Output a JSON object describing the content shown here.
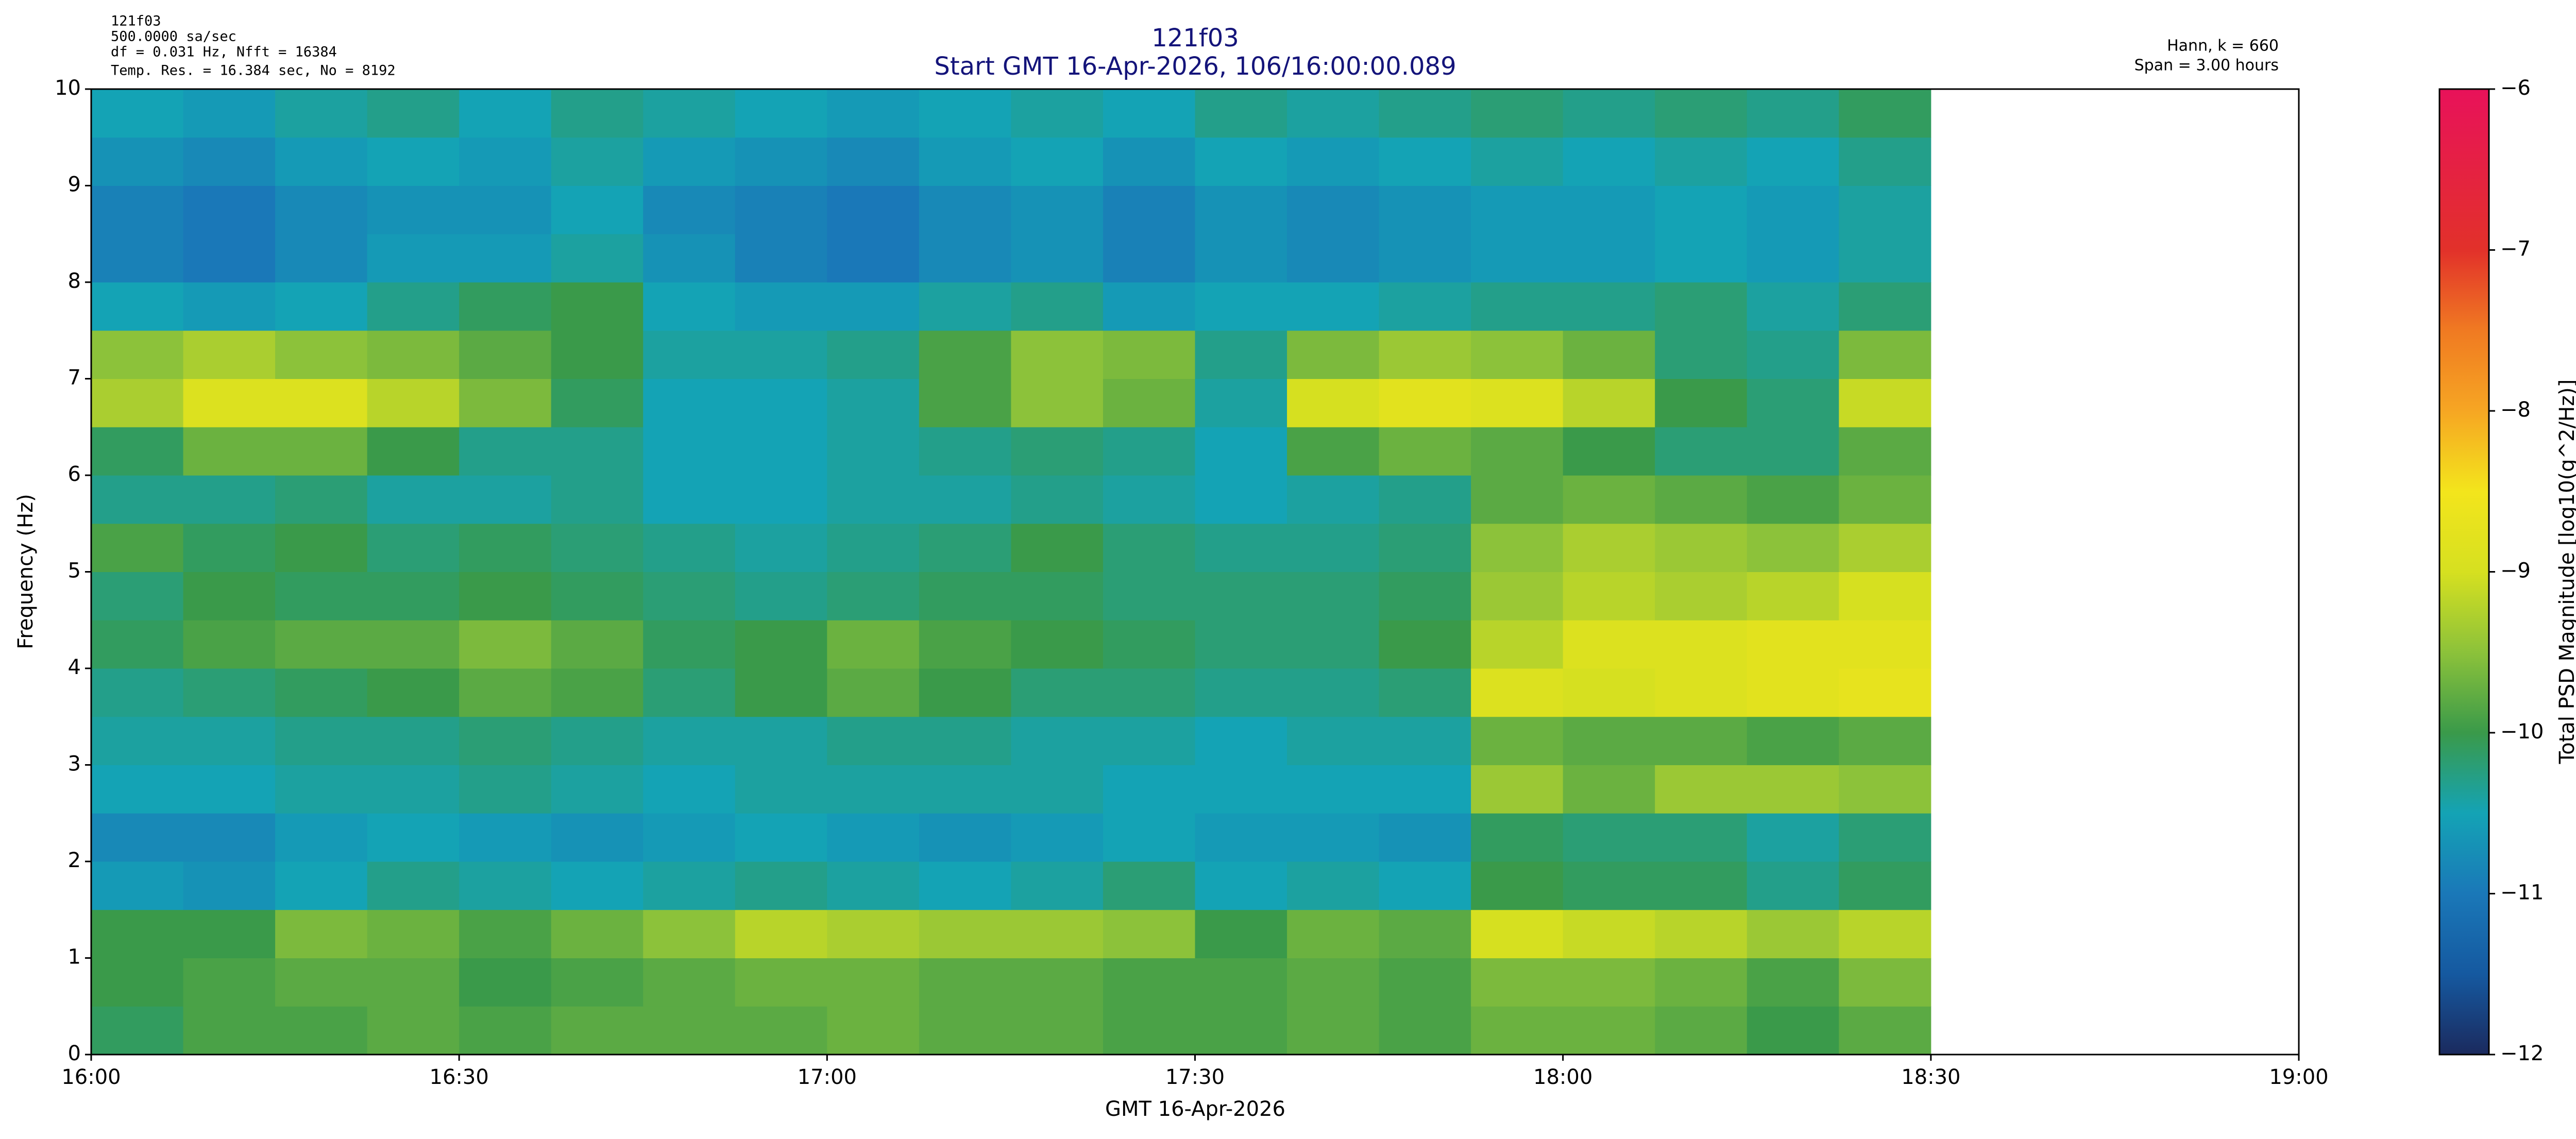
{
  "chart_data": {
    "type": "spectrogram",
    "title": "121f03",
    "subtitle": "Start GMT 16-Apr-2026, 106/16:00:00.089",
    "info": [
      "121f03",
      "500.0000 sa/sec",
      "df = 0.031 Hz,  Nfft = 16384",
      "Temp. Res. = 16.384 sec, No = 8192"
    ],
    "notes": [
      "Hann, k = 660",
      "Span = 3.00 hours"
    ],
    "x_label": "GMT 16-Apr-2026",
    "y_label": "Frequency (Hz)",
    "colorbar_label": "Total PSD Magnitude [log10(g^2/Hz)]",
    "xlim": [
      0,
      180
    ],
    "xticks": [
      {
        "value": 0,
        "label": "16:00"
      },
      {
        "value": 30,
        "label": "16:30"
      },
      {
        "value": 60,
        "label": "17:00"
      },
      {
        "value": 90,
        "label": "17:30"
      },
      {
        "value": 120,
        "label": "18:00"
      },
      {
        "value": 150,
        "label": "18:30"
      },
      {
        "value": 180,
        "label": "19:00"
      }
    ],
    "ylim": [
      0,
      10
    ],
    "yticks": [
      0,
      1,
      2,
      3,
      4,
      5,
      6,
      7,
      8,
      9,
      10
    ],
    "clim": [
      -12,
      -6
    ],
    "cticks": [
      {
        "value": -12,
        "label": "−12"
      },
      {
        "value": -11,
        "label": "−11"
      },
      {
        "value": -10,
        "label": "−10"
      },
      {
        "value": -9,
        "label": "−9"
      },
      {
        "value": -8,
        "label": "−8"
      },
      {
        "value": -7,
        "label": "−7"
      },
      {
        "value": -6,
        "label": "−6"
      }
    ],
    "colormap": [
      [
        -12,
        "#1b2a5e"
      ],
      [
        -11.5,
        "#1559a0"
      ],
      [
        -11,
        "#1a78b8"
      ],
      [
        -10.5,
        "#14a3b5"
      ],
      [
        -10,
        "#3a9a4a"
      ],
      [
        -9.5,
        "#8cc23a"
      ],
      [
        -9,
        "#d6e020"
      ],
      [
        -8.5,
        "#f3e51c"
      ],
      [
        -8,
        "#f6a623"
      ],
      [
        -7.5,
        "#f07a22"
      ],
      [
        -7,
        "#e2312a"
      ],
      [
        -6,
        "#e8125a"
      ]
    ],
    "x_bins": [
      0,
      7.5,
      15,
      22.5,
      30,
      37.5,
      45,
      52.5,
      60,
      67.5,
      75,
      82.5,
      90,
      97.5,
      105,
      112.5,
      120,
      127.5,
      135,
      142.5,
      150
    ],
    "y_bins": [
      0,
      0.5,
      1,
      1.5,
      2,
      2.5,
      3,
      3.5,
      4,
      4.5,
      5,
      5.5,
      6,
      6.5,
      7,
      7.5,
      8,
      8.5,
      9,
      9.5,
      10
    ],
    "z": [
      [
        -10.1,
        -9.9,
        -9.9,
        -9.8,
        -9.9,
        -9.8,
        -9.8,
        -9.8,
        -9.7,
        -9.8,
        -9.8,
        -9.9,
        -9.9,
        -9.8,
        -9.9,
        -9.7,
        -9.7,
        -9.8,
        -10.0,
        -9.8
      ],
      [
        -10.0,
        -9.9,
        -9.8,
        -9.8,
        -10.0,
        -9.9,
        -9.8,
        -9.7,
        -9.7,
        -9.8,
        -9.8,
        -9.9,
        -9.9,
        -9.8,
        -9.9,
        -9.6,
        -9.6,
        -9.7,
        -9.9,
        -9.6
      ],
      [
        -10.0,
        -10.0,
        -9.6,
        -9.7,
        -9.9,
        -9.7,
        -9.5,
        -9.2,
        -9.3,
        -9.4,
        -9.4,
        -9.5,
        -10.0,
        -9.7,
        -9.8,
        -9.0,
        -9.1,
        -9.2,
        -9.4,
        -9.2
      ],
      [
        -10.6,
        -10.7,
        -10.5,
        -10.3,
        -10.4,
        -10.5,
        -10.4,
        -10.3,
        -10.4,
        -10.5,
        -10.4,
        -10.2,
        -10.5,
        -10.4,
        -10.5,
        -10.0,
        -10.1,
        -10.1,
        -10.3,
        -10.1
      ],
      [
        -10.8,
        -10.8,
        -10.6,
        -10.5,
        -10.6,
        -10.7,
        -10.6,
        -10.5,
        -10.6,
        -10.7,
        -10.6,
        -10.5,
        -10.6,
        -10.6,
        -10.7,
        -10.1,
        -10.2,
        -10.2,
        -10.4,
        -10.2
      ],
      [
        -10.5,
        -10.5,
        -10.4,
        -10.4,
        -10.3,
        -10.4,
        -10.5,
        -10.4,
        -10.4,
        -10.4,
        -10.4,
        -10.5,
        -10.5,
        -10.5,
        -10.5,
        -9.4,
        -9.7,
        -9.4,
        -9.4,
        -9.5
      ],
      [
        -10.4,
        -10.4,
        -10.3,
        -10.3,
        -10.2,
        -10.3,
        -10.4,
        -10.4,
        -10.3,
        -10.3,
        -10.4,
        -10.4,
        -10.5,
        -10.4,
        -10.4,
        -9.7,
        -9.8,
        -9.8,
        -9.9,
        -9.8
      ],
      [
        -10.3,
        -10.2,
        -10.1,
        -10.0,
        -9.8,
        -9.9,
        -10.2,
        -10.0,
        -9.8,
        -10.0,
        -10.2,
        -10.2,
        -10.3,
        -10.3,
        -10.2,
        -8.9,
        -9.0,
        -8.9,
        -8.8,
        -8.7
      ],
      [
        -10.1,
        -9.9,
        -9.8,
        -9.8,
        -9.6,
        -9.8,
        -10.1,
        -10.0,
        -9.7,
        -9.9,
        -10.0,
        -10.1,
        -10.2,
        -10.2,
        -10.0,
        -9.2,
        -8.9,
        -8.9,
        -8.8,
        -8.8
      ],
      [
        -10.2,
        -10.0,
        -10.1,
        -10.1,
        -10.0,
        -10.1,
        -10.2,
        -10.3,
        -10.2,
        -10.1,
        -10.1,
        -10.2,
        -10.2,
        -10.2,
        -10.1,
        -9.4,
        -9.2,
        -9.3,
        -9.2,
        -9.0
      ],
      [
        -9.9,
        -10.1,
        -10.0,
        -10.2,
        -10.1,
        -10.2,
        -10.3,
        -10.4,
        -10.3,
        -10.2,
        -10.0,
        -10.2,
        -10.3,
        -10.3,
        -10.2,
        -9.5,
        -9.3,
        -9.4,
        -9.5,
        -9.3
      ],
      [
        -10.3,
        -10.3,
        -10.2,
        -10.4,
        -10.4,
        -10.3,
        -10.5,
        -10.5,
        -10.4,
        -10.4,
        -10.3,
        -10.4,
        -10.5,
        -10.4,
        -10.3,
        -9.8,
        -9.7,
        -9.8,
        -9.9,
        -9.7
      ],
      [
        -10.1,
        -9.7,
        -9.7,
        -10.0,
        -10.3,
        -10.3,
        -10.5,
        -10.5,
        -10.4,
        -10.3,
        -10.2,
        -10.3,
        -10.5,
        -9.9,
        -9.7,
        -9.8,
        -10.0,
        -10.2,
        -10.2,
        -9.8
      ],
      [
        -9.3,
        -8.9,
        -8.9,
        -9.2,
        -9.6,
        -10.1,
        -10.5,
        -10.5,
        -10.4,
        -9.9,
        -9.5,
        -9.7,
        -10.4,
        -9.0,
        -8.8,
        -8.9,
        -9.2,
        -10.0,
        -10.2,
        -9.1
      ],
      [
        -9.5,
        -9.3,
        -9.5,
        -9.6,
        -9.8,
        -10.0,
        -10.4,
        -10.4,
        -10.3,
        -9.9,
        -9.5,
        -9.6,
        -10.3,
        -9.6,
        -9.4,
        -9.5,
        -9.7,
        -10.2,
        -10.3,
        -9.6
      ],
      [
        -10.5,
        -10.6,
        -10.5,
        -10.3,
        -10.1,
        -10.0,
        -10.5,
        -10.6,
        -10.6,
        -10.4,
        -10.3,
        -10.6,
        -10.5,
        -10.5,
        -10.4,
        -10.3,
        -10.3,
        -10.2,
        -10.4,
        -10.2
      ],
      [
        -10.9,
        -11.0,
        -10.8,
        -10.6,
        -10.6,
        -10.4,
        -10.7,
        -10.9,
        -11.0,
        -10.8,
        -10.7,
        -10.9,
        -10.7,
        -10.8,
        -10.7,
        -10.6,
        -10.6,
        -10.5,
        -10.6,
        -10.4
      ],
      [
        -10.9,
        -11.0,
        -10.8,
        -10.7,
        -10.7,
        -10.5,
        -10.8,
        -10.9,
        -11.0,
        -10.8,
        -10.7,
        -10.9,
        -10.7,
        -10.8,
        -10.7,
        -10.6,
        -10.6,
        -10.5,
        -10.6,
        -10.4
      ],
      [
        -10.7,
        -10.8,
        -10.6,
        -10.5,
        -10.6,
        -10.4,
        -10.6,
        -10.7,
        -10.8,
        -10.6,
        -10.5,
        -10.7,
        -10.5,
        -10.6,
        -10.5,
        -10.4,
        -10.5,
        -10.4,
        -10.5,
        -10.3
      ],
      [
        -10.5,
        -10.6,
        -10.4,
        -10.3,
        -10.5,
        -10.3,
        -10.4,
        -10.5,
        -10.6,
        -10.5,
        -10.4,
        -10.5,
        -10.3,
        -10.4,
        -10.3,
        -10.2,
        -10.3,
        -10.2,
        -10.3,
        -10.1
      ]
    ]
  }
}
